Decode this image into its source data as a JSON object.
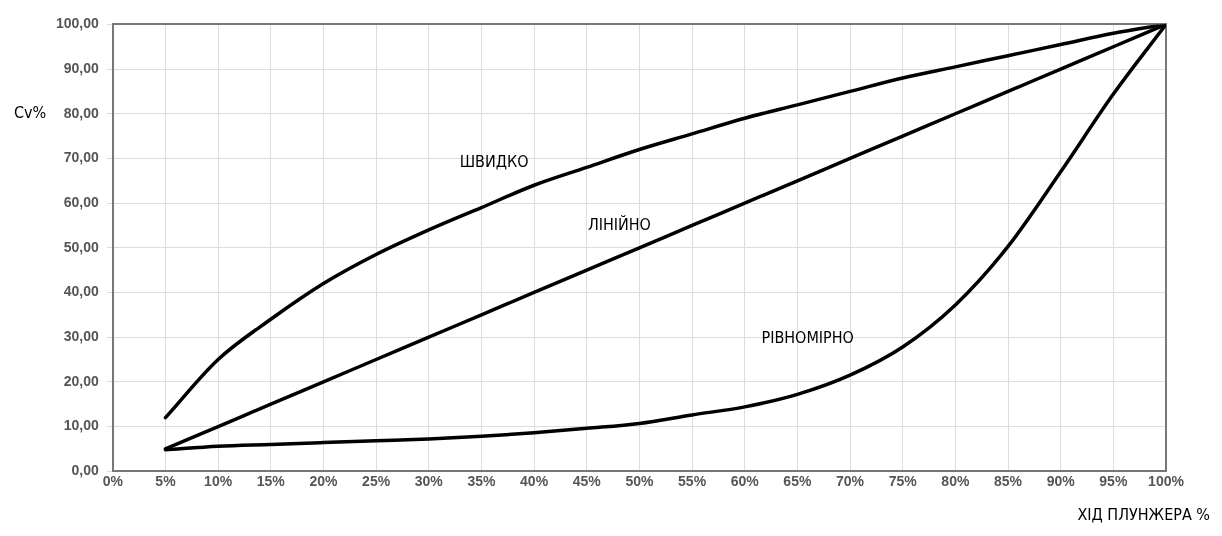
{
  "chart_data": {
    "type": "line",
    "xlabel": "ХІД ПЛУНЖЕРА %",
    "ylabel": "Cv%",
    "x": [
      5,
      10,
      15,
      20,
      25,
      30,
      35,
      40,
      45,
      50,
      55,
      60,
      65,
      70,
      75,
      80,
      85,
      90,
      95,
      100
    ],
    "series": [
      {
        "name": "ШВИДКО",
        "color": "#000000",
        "values": [
          12,
          25,
          34,
          42,
          48.5,
          54,
          59,
          64,
          68,
          72,
          75.5,
          79,
          82,
          85,
          88,
          90.5,
          93,
          95.5,
          98,
          100
        ]
      },
      {
        "name": "ЛІНІЙНО",
        "color": "#000000",
        "values": [
          5,
          10,
          15,
          20,
          25,
          30,
          35,
          40,
          45,
          50,
          55,
          60,
          65,
          70,
          75,
          80,
          85,
          90,
          95,
          100
        ]
      },
      {
        "name": "РІВНОМІРНО",
        "color": "#000000",
        "values": [
          4.8,
          5.6,
          6,
          6.4,
          6.8,
          7.2,
          7.8,
          8.6,
          9.6,
          10.7,
          12.6,
          14.4,
          17.2,
          21.5,
          27.8,
          37.2,
          50.3,
          67,
          84.4,
          100
        ]
      }
    ],
    "xlim": [
      0,
      100
    ],
    "xticks": [
      {
        "value": 0,
        "label": "0%"
      },
      {
        "value": 5,
        "label": "5%"
      },
      {
        "value": 10,
        "label": "10%"
      },
      {
        "value": 15,
        "label": "15%"
      },
      {
        "value": 20,
        "label": "20%"
      },
      {
        "value": 25,
        "label": "25%"
      },
      {
        "value": 30,
        "label": "30%"
      },
      {
        "value": 35,
        "label": "35%"
      },
      {
        "value": 40,
        "label": "40%"
      },
      {
        "value": 45,
        "label": "45%"
      },
      {
        "value": 50,
        "label": "50%"
      },
      {
        "value": 55,
        "label": "55%"
      },
      {
        "value": 60,
        "label": "60%"
      },
      {
        "value": 65,
        "label": "65%"
      },
      {
        "value": 70,
        "label": "70%"
      },
      {
        "value": 75,
        "label": "75%"
      },
      {
        "value": 80,
        "label": "80%"
      },
      {
        "value": 85,
        "label": "85%"
      },
      {
        "value": 90,
        "label": "90%"
      },
      {
        "value": 95,
        "label": "95%"
      },
      {
        "value": 100,
        "label": "100%"
      }
    ],
    "ylim": [
      0,
      100
    ],
    "yticks": [
      {
        "value": 0,
        "label": "0,00"
      },
      {
        "value": 10,
        "label": "10,00"
      },
      {
        "value": 20,
        "label": "20,00"
      },
      {
        "value": 30,
        "label": "30,00"
      },
      {
        "value": 40,
        "label": "40,00"
      },
      {
        "value": 50,
        "label": "50,00"
      },
      {
        "value": 60,
        "label": "60,00"
      },
      {
        "value": 70,
        "label": "70,00"
      },
      {
        "value": 80,
        "label": "80,00"
      },
      {
        "value": 90,
        "label": "90,00"
      },
      {
        "value": 100,
        "label": "100,00"
      }
    ],
    "grid": true,
    "legend": false,
    "marker": "none",
    "line_style": "solid"
  }
}
